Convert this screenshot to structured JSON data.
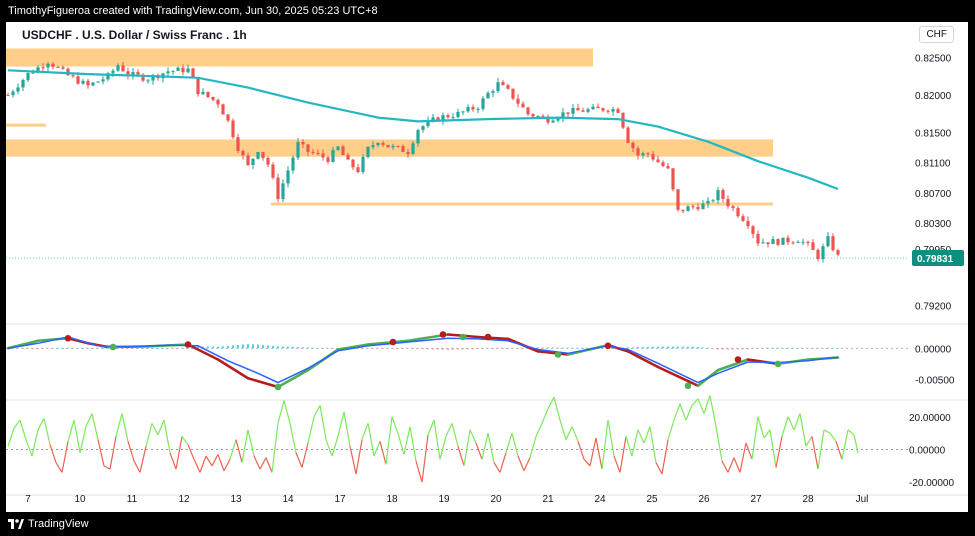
{
  "header": {
    "text": "TimothyFigueroa created with TradingView.com, Jun 30, 2025 05:23 UTC+8"
  },
  "footer": {
    "brand": "TradingView"
  },
  "chart_title": "USDCHF . U.S. Dollar / Swiss Franc . 1h",
  "currency_label": "CHF",
  "colors": {
    "up": "#26a69a",
    "down": "#ef5350",
    "zone": "#ffcf8a",
    "ma": "#22b8c2",
    "macd_green": "#4caf50",
    "macd_red": "#b71c1c",
    "macd_blue": "#2962ff",
    "osc_green": "#7ee85a",
    "osc_red": "#f0604f",
    "price_label_bg": "#0e8e7e"
  },
  "chart_data": [
    {
      "type": "candlestick",
      "ylim": [
        0.7898,
        0.8268
      ],
      "yticks": [
        "0.82500",
        "0.82000",
        "0.81500",
        "0.81100",
        "0.80700",
        "0.80300",
        "0.79950",
        "0.79200"
      ],
      "ytick_values": [
        0.825,
        0.82,
        0.815,
        0.811,
        0.807,
        0.803,
        0.7995,
        0.792
      ],
      "current_price": "0.79831",
      "current_price_value": 0.79831,
      "path_points": [
        [
          0,
          0.82
        ],
        [
          2,
          0.8228
        ],
        [
          4,
          0.8245
        ],
        [
          6,
          0.8226
        ],
        [
          8,
          0.8212
        ],
        [
          10,
          0.8225
        ],
        [
          11,
          0.824
        ],
        [
          12,
          0.8228
        ],
        [
          14,
          0.8222
        ],
        [
          16,
          0.8232
        ],
        [
          18,
          0.8234
        ],
        [
          19,
          0.8205
        ],
        [
          21,
          0.819
        ],
        [
          22,
          0.8165
        ],
        [
          23,
          0.813
        ],
        [
          24,
          0.8105
        ],
        [
          25,
          0.8128
        ],
        [
          26,
          0.8108
        ],
        [
          27,
          0.8065
        ],
        [
          28,
          0.81
        ],
        [
          29,
          0.8135
        ],
        [
          30,
          0.8125
        ],
        [
          32,
          0.8115
        ],
        [
          33,
          0.813
        ],
        [
          34,
          0.811
        ],
        [
          35,
          0.81
        ],
        [
          36,
          0.8128
        ],
        [
          37,
          0.814
        ],
        [
          38,
          0.8132
        ],
        [
          40,
          0.8125
        ],
        [
          41,
          0.8155
        ],
        [
          43,
          0.817
        ],
        [
          45,
          0.8175
        ],
        [
          47,
          0.8185
        ],
        [
          48,
          0.8202
        ],
        [
          49,
          0.8215
        ],
        [
          50,
          0.8205
        ],
        [
          52,
          0.8175
        ],
        [
          54,
          0.8168
        ],
        [
          56,
          0.8178
        ],
        [
          58,
          0.818
        ],
        [
          60,
          0.8182
        ],
        [
          61,
          0.818
        ],
        [
          62,
          0.814
        ],
        [
          63,
          0.812
        ],
        [
          64,
          0.8122
        ],
        [
          66,
          0.81
        ],
        [
          67,
          0.8045
        ],
        [
          68,
          0.805
        ],
        [
          70,
          0.8055
        ],
        [
          71,
          0.807
        ],
        [
          72,
          0.8055
        ],
        [
          74,
          0.803
        ],
        [
          75,
          0.8005
        ],
        [
          77,
          0.8005
        ],
        [
          79,
          0.8008
        ],
        [
          80,
          0.8
        ],
        [
          81,
          0.7985
        ],
        [
          82,
          0.8008
        ],
        [
          83,
          0.7985
        ]
      ],
      "moving_average": [
        [
          0,
          0.8233
        ],
        [
          8,
          0.8228
        ],
        [
          15,
          0.8225
        ],
        [
          19,
          0.8223
        ],
        [
          24,
          0.821
        ],
        [
          30,
          0.819
        ],
        [
          37,
          0.817
        ],
        [
          41,
          0.8165
        ],
        [
          48,
          0.8168
        ],
        [
          55,
          0.817
        ],
        [
          61,
          0.8168
        ],
        [
          65,
          0.8158
        ],
        [
          70,
          0.8138
        ],
        [
          75,
          0.8112
        ],
        [
          80,
          0.809
        ],
        [
          83,
          0.8075
        ]
      ],
      "zones": [
        {
          "from": 0,
          "to": 58.5,
          "lo": 0.8238,
          "hi": 0.8262
        },
        {
          "from": 0,
          "to": 3.8,
          "lo": 0.8158,
          "hi": 0.8162
        },
        {
          "from": 0,
          "to": 76.5,
          "lo": 0.8118,
          "hi": 0.8141
        },
        {
          "from": 26.5,
          "to": 76.5,
          "lo": 0.8053,
          "hi": 0.8057
        }
      ]
    },
    {
      "type": "line",
      "ylim": [
        -0.0078,
        0.0034
      ],
      "yticks": [
        "0.00000",
        "-0.00500"
      ],
      "ytick_values": [
        0.0,
        -0.005
      ],
      "signal_line": [
        [
          0,
          0.0
        ],
        [
          3,
          0.0012
        ],
        [
          6,
          0.0016
        ],
        [
          8,
          0.0008
        ],
        [
          10,
          0.0002
        ],
        [
          14,
          0.0003
        ],
        [
          18,
          0.0006
        ],
        [
          21,
          -0.0018
        ],
        [
          24,
          -0.0048
        ],
        [
          27,
          -0.0062
        ],
        [
          30,
          -0.0035
        ],
        [
          33,
          -0.0002
        ],
        [
          36,
          0.0006
        ],
        [
          40,
          0.0012
        ],
        [
          44,
          0.0022
        ],
        [
          47,
          0.0018
        ],
        [
          50,
          0.0015
        ],
        [
          53,
          -0.0005
        ],
        [
          56,
          -0.001
        ],
        [
          60,
          0.0005
        ],
        [
          62,
          -0.0005
        ],
        [
          65,
          -0.003
        ],
        [
          69,
          -0.006
        ],
        [
          71,
          -0.0035
        ],
        [
          74,
          -0.0018
        ],
        [
          77,
          -0.0025
        ],
        [
          80,
          -0.0018
        ],
        [
          83,
          -0.0015
        ]
      ],
      "macd_line": [
        [
          0,
          0.0
        ],
        [
          3,
          0.0008
        ],
        [
          6,
          0.0018
        ],
        [
          9,
          0.0004
        ],
        [
          12,
          0.0002
        ],
        [
          16,
          0.0005
        ],
        [
          19,
          0.0004
        ],
        [
          22,
          -0.002
        ],
        [
          25,
          -0.004
        ],
        [
          27,
          -0.0055
        ],
        [
          30,
          -0.0032
        ],
        [
          33,
          -0.0004
        ],
        [
          36,
          0.0004
        ],
        [
          40,
          0.001
        ],
        [
          44,
          0.0016
        ],
        [
          47,
          0.0015
        ],
        [
          50,
          0.0012
        ],
        [
          53,
          -0.0002
        ],
        [
          56,
          -0.0008
        ],
        [
          60,
          0.0004
        ],
        [
          62,
          -0.0002
        ],
        [
          65,
          -0.0024
        ],
        [
          69,
          -0.0055
        ],
        [
          71,
          -0.004
        ],
        [
          74,
          -0.0022
        ],
        [
          77,
          -0.0023
        ],
        [
          80,
          -0.002
        ],
        [
          83,
          -0.0014
        ]
      ],
      "markers": [
        {
          "x": 6,
          "y": 0.0016,
          "kind": "red"
        },
        {
          "x": 10.5,
          "y": 0.0002,
          "kind": "green"
        },
        {
          "x": 18,
          "y": 0.0006,
          "kind": "red"
        },
        {
          "x": 27,
          "y": -0.0062,
          "kind": "green"
        },
        {
          "x": 38.5,
          "y": 0.001,
          "kind": "red"
        },
        {
          "x": 43.5,
          "y": 0.0022,
          "kind": "red"
        },
        {
          "x": 45.5,
          "y": 0.0018,
          "kind": "green"
        },
        {
          "x": 48,
          "y": 0.0018,
          "kind": "red"
        },
        {
          "x": 55,
          "y": -0.001,
          "kind": "green"
        },
        {
          "x": 60,
          "y": 0.0004,
          "kind": "red"
        },
        {
          "x": 68,
          "y": -0.006,
          "kind": "green"
        },
        {
          "x": 73,
          "y": -0.0018,
          "kind": "red"
        },
        {
          "x": 77,
          "y": -0.0025,
          "kind": "green"
        }
      ]
    },
    {
      "type": "line",
      "ylim": [
        -26,
        26
      ],
      "yticks": [
        "20.00000",
        "0.00000",
        "-20.00000"
      ],
      "ytick_values": [
        20,
        0,
        -20
      ],
      "oscillator": [
        [
          0,
          2
        ],
        [
          0.6,
          13
        ],
        [
          1.2,
          18
        ],
        [
          1.8,
          6
        ],
        [
          2.4,
          -4
        ],
        [
          3,
          12
        ],
        [
          3.6,
          19
        ],
        [
          4.2,
          3
        ],
        [
          4.8,
          -8
        ],
        [
          5.4,
          -14
        ],
        [
          6,
          5
        ],
        [
          6.6,
          18
        ],
        [
          7.2,
          -2
        ],
        [
          7.8,
          14
        ],
        [
          8.4,
          22
        ],
        [
          9,
          6
        ],
        [
          9.6,
          -10
        ],
        [
          10.2,
          -12
        ],
        [
          10.8,
          8
        ],
        [
          11.4,
          22
        ],
        [
          12,
          5
        ],
        [
          12.6,
          -7
        ],
        [
          13.2,
          -14
        ],
        [
          13.8,
          2
        ],
        [
          14.4,
          16
        ],
        [
          15,
          9
        ],
        [
          15.6,
          18
        ],
        [
          16.2,
          -2
        ],
        [
          16.8,
          -12
        ],
        [
          17.4,
          8
        ],
        [
          18,
          3
        ],
        [
          18.6,
          -6
        ],
        [
          19.2,
          -14
        ],
        [
          19.8,
          -4
        ],
        [
          20.4,
          -10
        ],
        [
          21,
          -3
        ],
        [
          21.6,
          -13
        ],
        [
          22.2,
          -6
        ],
        [
          22.8,
          6
        ],
        [
          23.4,
          -8
        ],
        [
          24,
          12
        ],
        [
          24.6,
          -4
        ],
        [
          25.2,
          -12
        ],
        [
          25.8,
          -5
        ],
        [
          26.4,
          -14
        ],
        [
          27,
          16
        ],
        [
          27.6,
          30
        ],
        [
          28.2,
          16
        ],
        [
          28.8,
          -2
        ],
        [
          29.4,
          -11
        ],
        [
          30,
          4
        ],
        [
          30.6,
          20
        ],
        [
          31.2,
          27
        ],
        [
          31.8,
          6
        ],
        [
          32.4,
          -4
        ],
        [
          33,
          8
        ],
        [
          33.6,
          23
        ],
        [
          34.2,
          2
        ],
        [
          34.8,
          -15
        ],
        [
          35.4,
          6
        ],
        [
          36,
          16
        ],
        [
          36.6,
          -4
        ],
        [
          37.2,
          5
        ],
        [
          37.8,
          -9
        ],
        [
          38.4,
          20
        ],
        [
          39,
          10
        ],
        [
          39.6,
          -3
        ],
        [
          40.2,
          14
        ],
        [
          40.8,
          -7
        ],
        [
          41.4,
          -20
        ],
        [
          42,
          9
        ],
        [
          42.6,
          18
        ],
        [
          43.2,
          -6
        ],
        [
          43.8,
          8
        ],
        [
          44.4,
          16
        ],
        [
          45,
          2
        ],
        [
          45.6,
          -10
        ],
        [
          46.2,
          12
        ],
        [
          46.8,
          4
        ],
        [
          47.4,
          -6
        ],
        [
          48,
          10
        ],
        [
          48.6,
          -8
        ],
        [
          49.2,
          -14
        ],
        [
          49.8,
          -2
        ],
        [
          50.4,
          10
        ],
        [
          51,
          -4
        ],
        [
          51.6,
          -13
        ],
        [
          52.2,
          -5
        ],
        [
          52.8,
          8
        ],
        [
          53.4,
          16
        ],
        [
          54,
          25
        ],
        [
          54.6,
          32
        ],
        [
          55.2,
          18
        ],
        [
          55.8,
          6
        ],
        [
          56.4,
          14
        ],
        [
          57,
          5
        ],
        [
          57.6,
          -6
        ],
        [
          58.2,
          -10
        ],
        [
          58.8,
          7
        ],
        [
          59.4,
          -12
        ],
        [
          60,
          18
        ],
        [
          60.6,
          -4
        ],
        [
          61.2,
          -14
        ],
        [
          61.8,
          8
        ],
        [
          62.4,
          -4
        ],
        [
          63,
          12
        ],
        [
          63.6,
          4
        ],
        [
          64.2,
          14
        ],
        [
          64.8,
          -8
        ],
        [
          65.4,
          -15
        ],
        [
          66,
          6
        ],
        [
          66.6,
          18
        ],
        [
          67.2,
          28
        ],
        [
          67.8,
          18
        ],
        [
          68.4,
          27
        ],
        [
          69,
          31
        ],
        [
          69.6,
          22
        ],
        [
          70.2,
          33
        ],
        [
          70.8,
          14
        ],
        [
          71.4,
          -7
        ],
        [
          72,
          -14
        ],
        [
          72.6,
          -5
        ],
        [
          73.2,
          -14
        ],
        [
          73.8,
          4
        ],
        [
          74.4,
          -6
        ],
        [
          75,
          20
        ],
        [
          75.6,
          7
        ],
        [
          76.2,
          12
        ],
        [
          76.8,
          -11
        ],
        [
          77.4,
          8
        ],
        [
          78,
          20
        ],
        [
          78.6,
          12
        ],
        [
          79.2,
          22
        ],
        [
          79.8,
          2
        ],
        [
          80.4,
          8
        ],
        [
          81,
          -12
        ],
        [
          81.6,
          12
        ],
        [
          82.2,
          10
        ],
        [
          82.8,
          5
        ],
        [
          83.4,
          -6
        ],
        [
          84,
          12
        ],
        [
          84.6,
          9
        ],
        [
          85,
          -2
        ]
      ]
    }
  ],
  "x_axis": {
    "labels": [
      "7",
      "10",
      "11",
      "12",
      "13",
      "14",
      "17",
      "18",
      "19",
      "20",
      "21",
      "24",
      "25",
      "26",
      "27",
      "28",
      "Jul"
    ],
    "positions": [
      2.0,
      7.2,
      12.4,
      17.6,
      22.8,
      28.0,
      33.2,
      38.4,
      43.6,
      48.8,
      54.0,
      59.2,
      64.4,
      69.6,
      74.8,
      80.0,
      85.4
    ]
  }
}
